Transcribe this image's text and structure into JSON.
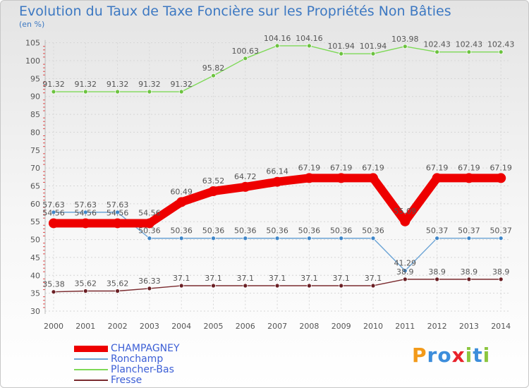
{
  "title": "Evolution du Taux de Taxe Foncière sur les Propriétés Non Bâties",
  "subtitle": "(en %)",
  "brand": {
    "text": "Proxiti",
    "letters": [
      "P",
      "r",
      "o",
      "x",
      "i",
      "t",
      "i"
    ],
    "colors": [
      "#f29a1a",
      "#3c8ddb",
      "#3c8ddb",
      "#e8222b",
      "#8cc63f",
      "#3c8ddb",
      "#8cc63f"
    ]
  },
  "chart_data": {
    "type": "line",
    "title": "Evolution du Taux de Taxe Foncière sur les Propriétés Non Bâties",
    "ylabel": "(en %)",
    "xlabel": "",
    "ylim": [
      30,
      105
    ],
    "yticks": [
      30,
      35,
      40,
      45,
      50,
      55,
      60,
      65,
      70,
      75,
      80,
      85,
      90,
      95,
      100,
      105
    ],
    "grid": true,
    "legend_position": "bottom-left",
    "categories": [
      "2000",
      "2001",
      "2002",
      "2003",
      "2004",
      "2005",
      "2006",
      "2007",
      "2008",
      "2009",
      "2010",
      "2011",
      "2012",
      "2013",
      "2014"
    ],
    "series": [
      {
        "name": "Plancher-Bas",
        "color": "#7ed957",
        "marker": "#6cc23f",
        "values": [
          91.32,
          91.32,
          91.32,
          91.32,
          91.32,
          95.82,
          100.63,
          104.16,
          104.16,
          101.94,
          101.94,
          103.98,
          102.43,
          102.43,
          102.43
        ],
        "labels": [
          "91.32",
          "91.32",
          "91.32",
          "91.32",
          "91.32",
          "95.82",
          "100.63",
          "104.16",
          "104.16",
          "101.94",
          "101.94",
          "103.98",
          "102.43",
          "102.43",
          "102.43"
        ]
      },
      {
        "name": "Ronchamp",
        "color": "#6aa3d5",
        "marker": "#3f86c8",
        "values": [
          57.63,
          57.63,
          57.63,
          50.36,
          50.36,
          50.36,
          50.36,
          50.36,
          50.36,
          50.36,
          50.36,
          41.29,
          50.37,
          50.37,
          50.37
        ],
        "labels": [
          "57.63",
          "57.63",
          "57.63",
          "50.36",
          "50.36",
          "50.36",
          "50.36",
          "50.36",
          "50.36",
          "50.36",
          "50.36",
          "41.29",
          "50.37",
          "50.37",
          "50.37"
        ]
      },
      {
        "name": "Fresse",
        "color": "#7a2a2e",
        "marker": "#6a1f24",
        "values": [
          35.38,
          35.62,
          35.62,
          36.33,
          37.1,
          37.1,
          37.1,
          37.1,
          37.1,
          37.1,
          37.1,
          38.9,
          38.9,
          38.9,
          38.9
        ],
        "labels": [
          "35.38",
          "35.62",
          "35.62",
          "36.33",
          "37.1",
          "37.1",
          "37.1",
          "37.1",
          "37.1",
          "37.1",
          "37.1",
          "38.9",
          "38.9",
          "38.9",
          "38.9"
        ]
      },
      {
        "name": "CHAMPAGNEY",
        "color": "#ee0000",
        "marker": "#ee0000",
        "values": [
          54.56,
          54.56,
          54.56,
          54.56,
          60.49,
          63.52,
          64.72,
          66.14,
          67.19,
          67.19,
          67.19,
          55.09,
          67.19,
          67.19,
          67.19
        ],
        "labels": [
          "54.56",
          "54.56",
          "54.56",
          "54.56",
          "60.49",
          "63.52",
          "64.72",
          "66.14",
          "67.19",
          "67.19",
          "67.19",
          "55.09",
          "67.19",
          "67.19",
          "67.19"
        ]
      }
    ]
  },
  "legend": [
    {
      "name": "CHAMPAGNEY",
      "color": "#ee0000"
    },
    {
      "name": "Ronchamp",
      "color": "#6aa3d5"
    },
    {
      "name": "Plancher-Bas",
      "color": "#7ed957"
    },
    {
      "name": "Fresse",
      "color": "#7a2a2e"
    }
  ]
}
